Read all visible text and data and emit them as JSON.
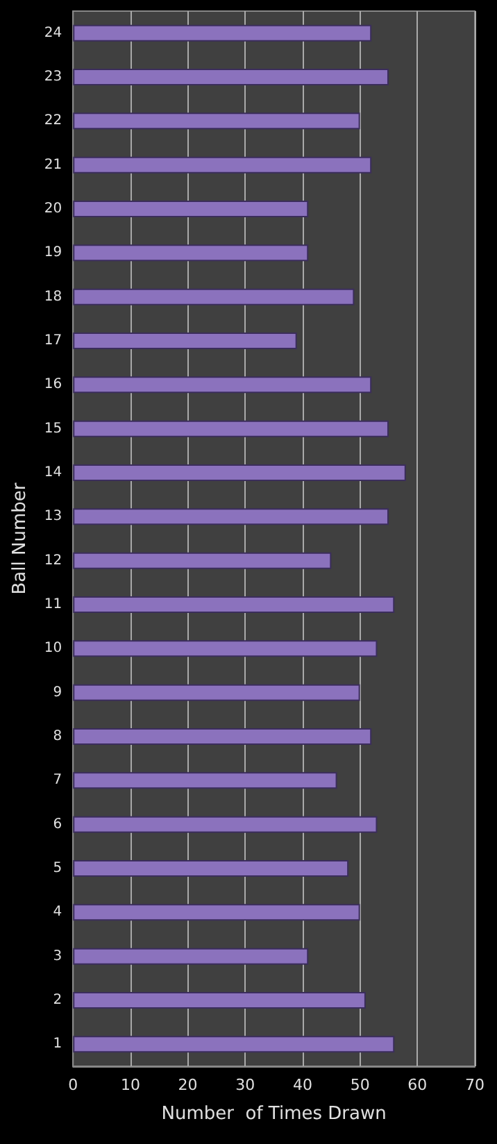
{
  "chart_data": {
    "type": "bar",
    "orientation": "horizontal",
    "xlabel": "Number  of Times Drawn",
    "ylabel": "Ball Number",
    "categories": [
      "24",
      "23",
      "22",
      "21",
      "20",
      "19",
      "18",
      "17",
      "16",
      "15",
      "14",
      "13",
      "12",
      "11",
      "10",
      "9",
      "8",
      "7",
      "6",
      "5",
      "4",
      "3",
      "2",
      "1"
    ],
    "values": [
      52,
      55,
      50,
      52,
      41,
      41,
      49,
      39,
      52,
      55,
      58,
      55,
      45,
      56,
      53,
      50,
      52,
      46,
      53,
      48,
      50,
      41,
      51,
      56
    ],
    "color": "#8b72bd",
    "xlim": [
      0,
      70
    ],
    "xticks": [
      0,
      10,
      20,
      30,
      40,
      50,
      60,
      70
    ],
    "grid": "x"
  }
}
